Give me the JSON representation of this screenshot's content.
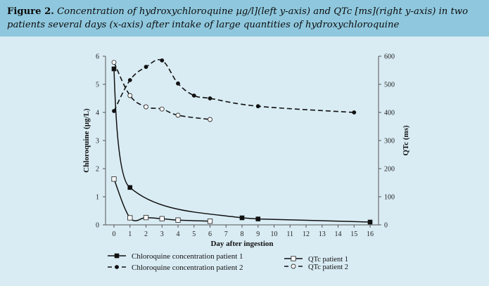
{
  "caption": {
    "label": "Figure 2.",
    "text": "Concentration of hydroxychloroquine µg/l](left y-axis) and QTc [ms](right y-axis) in two patients several days (x-axis) after intake of large quantities of hydroxychloroquine"
  },
  "chart_data": {
    "type": "line",
    "xlabel": "Day after ingestion",
    "ylabel_left": "Chloroquine (µg/L)",
    "ylabel_right": "QTc (ms)",
    "x_ticks": [
      0,
      1,
      2,
      3,
      4,
      5,
      6,
      7,
      8,
      9,
      10,
      11,
      12,
      13,
      14,
      15,
      16
    ],
    "ylim_left": [
      0,
      6
    ],
    "y_ticks_left": [
      0,
      1,
      2,
      3,
      4,
      5,
      6
    ],
    "ylim_right": [
      0,
      600
    ],
    "y_ticks_right": [
      0,
      100,
      200,
      300,
      400,
      500,
      600
    ],
    "grid": false,
    "legend_position": "bottom",
    "series": [
      {
        "name": "Chloroquine concentration patient 1",
        "axis": "left",
        "line": "solid",
        "marker": "filled-square",
        "x": [
          0,
          1,
          8,
          9,
          16
        ],
        "y": [
          5.55,
          1.33,
          0.25,
          0.21,
          0.1
        ]
      },
      {
        "name": "Chloroquine concentration patient 2",
        "axis": "right",
        "line": "dashed",
        "marker": "filled-circle",
        "x": [
          0,
          1,
          2,
          3,
          4,
          5,
          6,
          9,
          15
        ],
        "y": [
          405,
          515,
          562,
          585,
          503,
          460,
          450,
          422,
          400
        ]
      },
      {
        "name": "QTc patient 1",
        "axis": "left",
        "line": "solid",
        "marker": "open-square",
        "x": [
          0,
          1,
          2,
          3,
          4,
          6
        ],
        "y": [
          1.63,
          0.25,
          0.26,
          0.22,
          0.17,
          0.13
        ]
      },
      {
        "name": "QTc patient 2",
        "axis": "right",
        "line": "dashed",
        "marker": "open-circle",
        "x": [
          0,
          1,
          2,
          3,
          4,
          6
        ],
        "y": [
          578,
          460,
          420,
          412,
          390,
          375
        ]
      }
    ]
  }
}
